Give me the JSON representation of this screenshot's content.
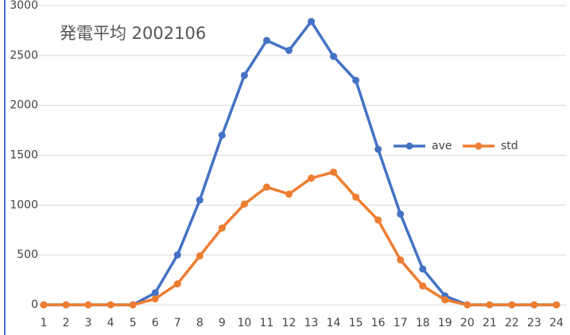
{
  "chart_data": {
    "type": "line",
    "title": "発電平均 2002106",
    "categories": [
      "1",
      "2",
      "3",
      "4",
      "5",
      "6",
      "7",
      "8",
      "9",
      "10",
      "11",
      "12",
      "13",
      "14",
      "15",
      "16",
      "17",
      "18",
      "19",
      "20",
      "21",
      "22",
      "23",
      "24"
    ],
    "series": [
      {
        "name": "ave",
        "color": "#4472c4",
        "values": [
          0,
          0,
          0,
          0,
          0,
          120,
          500,
          1050,
          1700,
          2300,
          2650,
          2550,
          2840,
          2490,
          2250,
          1560,
          910,
          360,
          90,
          0,
          0,
          0,
          0,
          0
        ]
      },
      {
        "name": "std",
        "color": "#ed7d31",
        "values": [
          0,
          0,
          0,
          0,
          0,
          60,
          210,
          490,
          770,
          1010,
          1180,
          1110,
          1270,
          1330,
          1080,
          850,
          450,
          190,
          50,
          0,
          0,
          0,
          0,
          0
        ]
      }
    ],
    "ylim": [
      0,
      3000
    ],
    "yticks": [
      0,
      500,
      1000,
      1500,
      2000,
      2500,
      3000
    ],
    "grid": true
  }
}
